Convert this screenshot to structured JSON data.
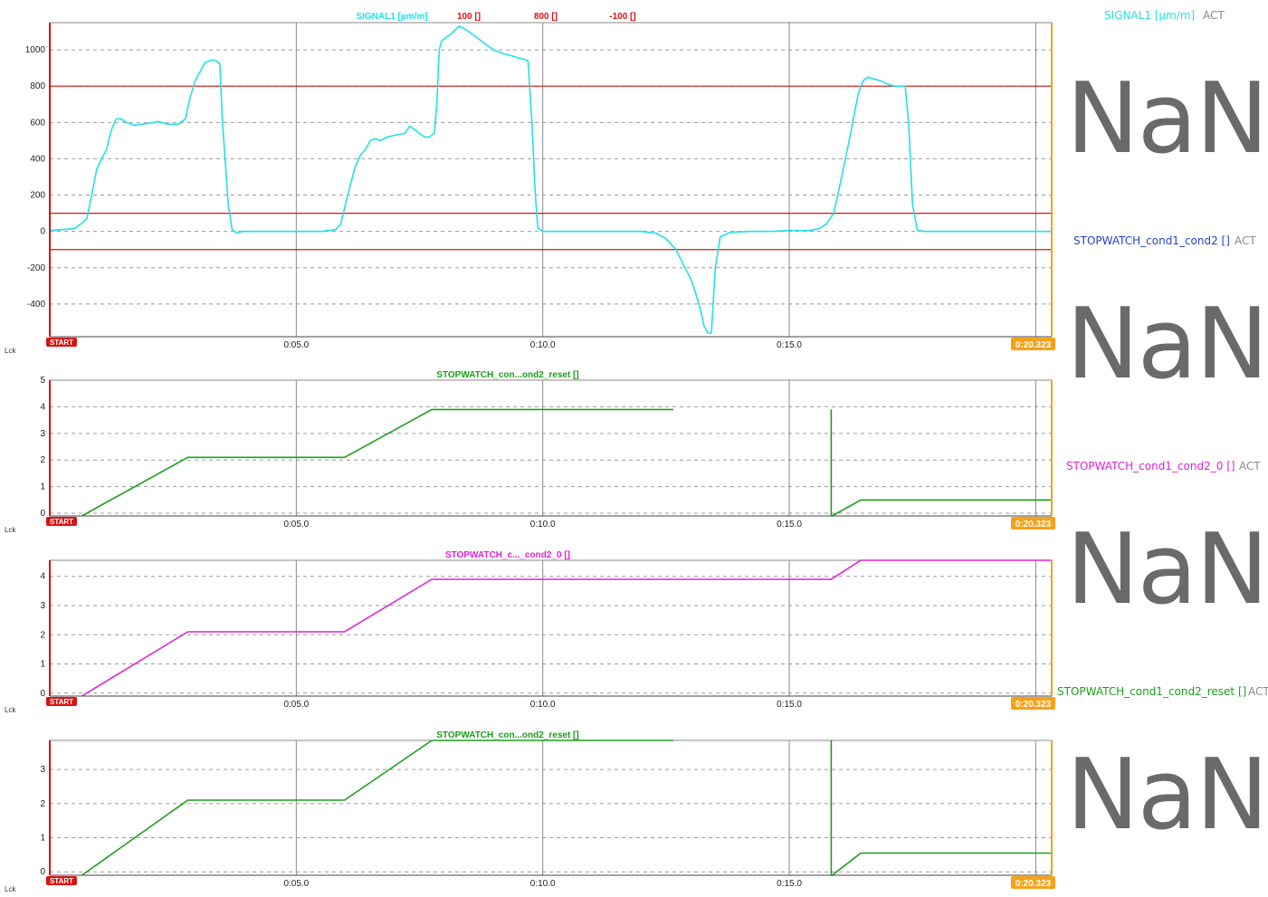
{
  "time_axis": {
    "tick_labels": [
      "0:05.0",
      "0:10.0",
      "0:15.0"
    ],
    "tick_values": [
      5,
      10,
      15
    ],
    "range": [
      0,
      20.323
    ],
    "start_marker_label": "START",
    "end_marker_label": "0:20.323",
    "lock_label": "Lck"
  },
  "colors": {
    "signal1": "#22e0e8",
    "stopwatch_cond1_cond2": "#2244cc",
    "stopwatch_cond1_cond2_0": "#e020d8",
    "stopwatch_cond1_cond2_reset": "#1aa01a",
    "limit": "#dd1111",
    "start_marker": "#dd1111",
    "end_marker": "#f5a21a",
    "act": "#8a8a8a",
    "nan": "#6a6a6a"
  },
  "side_panel": [
    {
      "name": "SIGNAL1 [µm/m]",
      "act": "ACT",
      "value": "NaN",
      "color_key": "signal1"
    },
    {
      "name": "STOPWATCH_cond1_cond2 []",
      "act": "ACT",
      "value": "NaN",
      "color_key": "stopwatch_cond1_cond2"
    },
    {
      "name": "STOPWATCH_cond1_cond2_0 []",
      "act": "ACT",
      "value": "NaN",
      "color_key": "stopwatch_cond1_cond2_0"
    },
    {
      "name": "STOPWATCH_cond1_cond2_reset []",
      "act": "ACT",
      "value": "NaN",
      "color_key": "stopwatch_cond1_cond2_reset"
    }
  ],
  "chart_data": [
    {
      "type": "line",
      "header_labels": [
        {
          "text": "SIGNAL1 [µm/m]",
          "color_key": "signal1"
        },
        {
          "text": "100 []",
          "color_key": "limit"
        },
        {
          "text": "800 []",
          "color_key": "limit"
        },
        {
          "text": "-100 []",
          "color_key": "limit"
        }
      ],
      "ylim": [
        -580,
        1150
      ],
      "yticks": [
        -400,
        -200,
        0,
        200,
        400,
        600,
        800,
        1000
      ],
      "ytick_labels": [
        "-400",
        "-200",
        "0",
        "200",
        "400",
        "600",
        "800",
        "1000"
      ],
      "grid": true,
      "limit_lines": [
        100,
        800,
        -100
      ],
      "series": [
        {
          "name": "SIGNAL1 [µm/m]",
          "color_key": "signal1",
          "x": [
            0,
            0.5,
            0.65,
            0.75,
            0.85,
            0.95,
            1.05,
            1.15,
            1.25,
            1.35,
            1.45,
            1.55,
            1.7,
            1.85,
            2.0,
            2.2,
            2.4,
            2.6,
            2.75,
            2.85,
            2.95,
            3.05,
            3.15,
            3.3,
            3.38,
            3.45,
            3.5,
            3.55,
            3.62,
            3.7,
            3.8,
            3.9,
            4.0,
            4.5,
            5.0,
            5.5,
            5.8,
            5.9,
            6.0,
            6.1,
            6.2,
            6.3,
            6.4,
            6.5,
            6.6,
            6.7,
            6.85,
            7.0,
            7.2,
            7.3,
            7.4,
            7.5,
            7.6,
            7.7,
            7.8,
            7.85,
            7.9,
            7.95,
            8.05,
            8.15,
            8.3,
            8.45,
            8.6,
            8.8,
            9.0,
            9.2,
            9.4,
            9.5,
            9.6,
            9.7,
            9.78,
            9.85,
            9.9,
            10.0,
            10.5,
            11.0,
            11.5,
            12.0,
            12.3,
            12.5,
            12.7,
            12.85,
            13.0,
            13.1,
            13.2,
            13.27,
            13.35,
            13.42,
            13.5,
            13.6,
            13.8,
            14.2,
            14.6,
            15.0,
            15.4,
            15.6,
            15.75,
            15.9,
            16.0,
            16.1,
            16.2,
            16.3,
            16.4,
            16.5,
            16.6,
            16.7,
            16.85,
            17.0,
            17.15,
            17.25,
            17.35,
            17.42,
            17.5,
            17.6,
            17.8,
            18.5,
            19.5,
            20.323
          ],
          "y": [
            5,
            15,
            45,
            70,
            200,
            340,
            400,
            450,
            560,
            620,
            620,
            600,
            585,
            590,
            595,
            605,
            590,
            590,
            620,
            740,
            830,
            880,
            930,
            945,
            940,
            920,
            620,
            420,
            150,
            10,
            -10,
            0,
            0,
            0,
            0,
            0,
            10,
            40,
            150,
            260,
            360,
            420,
            450,
            500,
            510,
            500,
            520,
            530,
            540,
            580,
            560,
            540,
            520,
            520,
            540,
            700,
            1000,
            1050,
            1070,
            1090,
            1130,
            1110,
            1080,
            1040,
            1000,
            980,
            965,
            955,
            950,
            940,
            600,
            200,
            20,
            0,
            0,
            0,
            0,
            0,
            -10,
            -40,
            -100,
            -180,
            -260,
            -340,
            -430,
            -520,
            -560,
            -560,
            -200,
            -30,
            -5,
            0,
            0,
            5,
            5,
            15,
            40,
            100,
            220,
            350,
            480,
            620,
            760,
            830,
            850,
            840,
            830,
            810,
            800,
            800,
            800,
            600,
            150,
            5,
            0,
            0,
            0,
            0
          ]
        }
      ]
    },
    {
      "type": "line",
      "header_labels": [
        {
          "text": "STOPWATCH_con...ond2_reset []",
          "color_key": "stopwatch_cond1_cond2_reset"
        }
      ],
      "ylim": [
        -0.1,
        5.0
      ],
      "yticks": [
        0,
        1,
        2,
        3,
        4,
        5
      ],
      "ytick_labels": [
        "0",
        "1",
        "2",
        "3",
        "4",
        "5"
      ],
      "grid": true,
      "series": [
        {
          "name": "STOPWATCH_cond1_cond2_reset []",
          "color_key": "stopwatch_cond1_cond2_reset",
          "segments": [
            {
              "x": [
                0.65,
                2.8,
                5.98,
                7.75,
                12.65
              ],
              "y": [
                -0.1,
                2.1,
                2.1,
                3.9,
                3.9
              ]
            },
            {
              "x": [
                15.85,
                15.85,
                15.87,
                16.45,
                20.323
              ],
              "y": [
                3.9,
                -0.1,
                -0.1,
                0.5,
                0.5
              ]
            }
          ]
        }
      ]
    },
    {
      "type": "line",
      "header_labels": [
        {
          "text": "STOPWATCH_c..._cond2_0 []",
          "color_key": "stopwatch_cond1_cond2_0"
        }
      ],
      "ylim": [
        -0.1,
        4.55
      ],
      "yticks": [
        0,
        1,
        2,
        3,
        4
      ],
      "ytick_labels": [
        "0",
        "1",
        "2",
        "3",
        "4"
      ],
      "grid": true,
      "series": [
        {
          "name": "STOPWATCH_cond1_cond2_0 []",
          "color_key": "stopwatch_cond1_cond2_0",
          "segments": [
            {
              "x": [
                0.65,
                2.8,
                5.98,
                7.75,
                15.85,
                16.45,
                20.323
              ],
              "y": [
                -0.1,
                2.1,
                2.1,
                3.9,
                3.9,
                4.55,
                4.55
              ]
            }
          ]
        }
      ]
    },
    {
      "type": "line",
      "header_labels": [
        {
          "text": "STOPWATCH_con...ond2_reset []",
          "color_key": "stopwatch_cond1_cond2_reset"
        }
      ],
      "ylim": [
        -0.1,
        3.85
      ],
      "yticks": [
        0,
        1,
        2,
        3
      ],
      "ytick_labels": [
        "0",
        "1",
        "2",
        "3"
      ],
      "grid": true,
      "series": [
        {
          "name": "STOPWATCH_cond1_cond2_reset []",
          "color_key": "stopwatch_cond1_cond2_reset",
          "segments": [
            {
              "x": [
                0.65,
                2.8,
                5.98,
                7.75,
                12.65
              ],
              "y": [
                -0.1,
                2.1,
                2.1,
                3.85,
                3.85
              ]
            },
            {
              "x": [
                15.85,
                15.85,
                15.87,
                16.45,
                20.323
              ],
              "y": [
                3.85,
                -0.1,
                -0.1,
                0.55,
                0.55
              ]
            }
          ]
        }
      ]
    }
  ]
}
